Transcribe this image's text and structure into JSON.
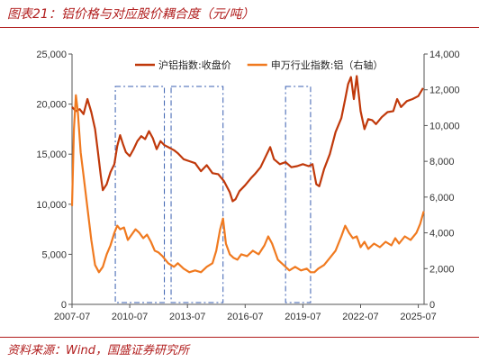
{
  "figure": {
    "title": "图表21：铝价格与对应股价耦合度（元/吨）",
    "source": "资料来源：Wind，国盛证券研究所"
  },
  "chart_data": {
    "type": "line",
    "x_ticks": [
      "2007-07",
      "2010-07",
      "2013-07",
      "2016-07",
      "2019-07",
      "2022-07",
      "2025-07"
    ],
    "x_range": [
      2007.5,
      2025.8
    ],
    "ylim_left": [
      0,
      25000
    ],
    "ylim_right": [
      0,
      14000
    ],
    "yticks_left": [
      "0",
      "5,000",
      "10,000",
      "15,000",
      "20,000",
      "25,000"
    ],
    "yticks_right": [
      "0",
      "2,000",
      "4,000",
      "6,000",
      "8,000",
      "10,000",
      "12,000",
      "14,000"
    ],
    "legend_position": "top-center",
    "highlight_periods": [
      [
        2009.75,
        2012.3
      ],
      [
        2012.65,
        2015.35
      ],
      [
        2018.6,
        2019.9
      ]
    ],
    "series": [
      {
        "name": "沪铝指数:收盘价",
        "axis": "left",
        "color": "#c0390b",
        "points": [
          [
            2007.5,
            19700
          ],
          [
            2007.7,
            19300
          ],
          [
            2007.9,
            19500
          ],
          [
            2008.1,
            19000
          ],
          [
            2008.3,
            20500
          ],
          [
            2008.5,
            19200
          ],
          [
            2008.7,
            17500
          ],
          [
            2008.85,
            15200
          ],
          [
            2009.0,
            12800
          ],
          [
            2009.1,
            11400
          ],
          [
            2009.3,
            12000
          ],
          [
            2009.5,
            13200
          ],
          [
            2009.7,
            14000
          ],
          [
            2009.85,
            15800
          ],
          [
            2010.0,
            16900
          ],
          [
            2010.15,
            16000
          ],
          [
            2010.3,
            15200
          ],
          [
            2010.5,
            14800
          ],
          [
            2010.7,
            15500
          ],
          [
            2010.9,
            16300
          ],
          [
            2011.1,
            16800
          ],
          [
            2011.3,
            16500
          ],
          [
            2011.5,
            17300
          ],
          [
            2011.7,
            16600
          ],
          [
            2011.9,
            15500
          ],
          [
            2012.1,
            16300
          ],
          [
            2012.3,
            15900
          ],
          [
            2012.5,
            15700
          ],
          [
            2012.8,
            15400
          ],
          [
            2013.0,
            15100
          ],
          [
            2013.3,
            14500
          ],
          [
            2013.6,
            14300
          ],
          [
            2013.9,
            14100
          ],
          [
            2014.2,
            13300
          ],
          [
            2014.5,
            13900
          ],
          [
            2014.8,
            13100
          ],
          [
            2015.1,
            13000
          ],
          [
            2015.4,
            12300
          ],
          [
            2015.7,
            11200
          ],
          [
            2015.85,
            10300
          ],
          [
            2016.0,
            10500
          ],
          [
            2016.2,
            11300
          ],
          [
            2016.5,
            11900
          ],
          [
            2016.8,
            12600
          ],
          [
            2017.0,
            13000
          ],
          [
            2017.3,
            13700
          ],
          [
            2017.6,
            14900
          ],
          [
            2017.8,
            15700
          ],
          [
            2018.0,
            14500
          ],
          [
            2018.3,
            14000
          ],
          [
            2018.6,
            14200
          ],
          [
            2018.9,
            13700
          ],
          [
            2019.2,
            13800
          ],
          [
            2019.5,
            14000
          ],
          [
            2019.8,
            13800
          ],
          [
            2020.0,
            14000
          ],
          [
            2020.2,
            12000
          ],
          [
            2020.35,
            11800
          ],
          [
            2020.6,
            13500
          ],
          [
            2020.9,
            15000
          ],
          [
            2021.2,
            17200
          ],
          [
            2021.5,
            18600
          ],
          [
            2021.7,
            20500
          ],
          [
            2021.85,
            22000
          ],
          [
            2022.0,
            22700
          ],
          [
            2022.15,
            20500
          ],
          [
            2022.3,
            22800
          ],
          [
            2022.5,
            19300
          ],
          [
            2022.7,
            17500
          ],
          [
            2022.9,
            18500
          ],
          [
            2023.1,
            18400
          ],
          [
            2023.3,
            18000
          ],
          [
            2023.6,
            18700
          ],
          [
            2023.9,
            19200
          ],
          [
            2024.2,
            19300
          ],
          [
            2024.4,
            20500
          ],
          [
            2024.6,
            19700
          ],
          [
            2024.9,
            20300
          ],
          [
            2025.2,
            20500
          ],
          [
            2025.5,
            20800
          ],
          [
            2025.75,
            21600
          ]
        ]
      },
      {
        "name": "申万行业指数:铝（右轴）",
        "axis": "right",
        "color": "#f07a20",
        "points": [
          [
            2007.5,
            5500
          ],
          [
            2007.6,
            9800
          ],
          [
            2007.7,
            11700
          ],
          [
            2007.8,
            10800
          ],
          [
            2007.95,
            8500
          ],
          [
            2008.1,
            7200
          ],
          [
            2008.3,
            5400
          ],
          [
            2008.5,
            3600
          ],
          [
            2008.7,
            2200
          ],
          [
            2008.9,
            1800
          ],
          [
            2009.1,
            2100
          ],
          [
            2009.3,
            2800
          ],
          [
            2009.5,
            3300
          ],
          [
            2009.7,
            4000
          ],
          [
            2009.85,
            4400
          ],
          [
            2010.0,
            4200
          ],
          [
            2010.2,
            4300
          ],
          [
            2010.4,
            3600
          ],
          [
            2010.6,
            3900
          ],
          [
            2010.8,
            4200
          ],
          [
            2011.0,
            4000
          ],
          [
            2011.2,
            3700
          ],
          [
            2011.4,
            3900
          ],
          [
            2011.6,
            3500
          ],
          [
            2011.8,
            3000
          ],
          [
            2012.0,
            2900
          ],
          [
            2012.2,
            2700
          ],
          [
            2012.5,
            2300
          ],
          [
            2012.8,
            2100
          ],
          [
            2013.0,
            2300
          ],
          [
            2013.3,
            2000
          ],
          [
            2013.6,
            1800
          ],
          [
            2013.9,
            1900
          ],
          [
            2014.2,
            1800
          ],
          [
            2014.5,
            2100
          ],
          [
            2014.8,
            2300
          ],
          [
            2015.0,
            3000
          ],
          [
            2015.2,
            4200
          ],
          [
            2015.35,
            4800
          ],
          [
            2015.5,
            3400
          ],
          [
            2015.7,
            2800
          ],
          [
            2015.9,
            2600
          ],
          [
            2016.1,
            2500
          ],
          [
            2016.3,
            2800
          ],
          [
            2016.6,
            2700
          ],
          [
            2016.9,
            3000
          ],
          [
            2017.2,
            2800
          ],
          [
            2017.5,
            3300
          ],
          [
            2017.7,
            3800
          ],
          [
            2017.9,
            3400
          ],
          [
            2018.2,
            2500
          ],
          [
            2018.5,
            2200
          ],
          [
            2018.8,
            1900
          ],
          [
            2019.1,
            2100
          ],
          [
            2019.4,
            1900
          ],
          [
            2019.7,
            2000
          ],
          [
            2019.9,
            1800
          ],
          [
            2020.1,
            1800
          ],
          [
            2020.3,
            2000
          ],
          [
            2020.6,
            2200
          ],
          [
            2020.9,
            2600
          ],
          [
            2021.2,
            3000
          ],
          [
            2021.5,
            3800
          ],
          [
            2021.7,
            4400
          ],
          [
            2021.9,
            4000
          ],
          [
            2022.1,
            3700
          ],
          [
            2022.3,
            3800
          ],
          [
            2022.5,
            3200
          ],
          [
            2022.7,
            3500
          ],
          [
            2022.9,
            3100
          ],
          [
            2023.2,
            3400
          ],
          [
            2023.5,
            3200
          ],
          [
            2023.8,
            3500
          ],
          [
            2024.1,
            3300
          ],
          [
            2024.3,
            3700
          ],
          [
            2024.5,
            3400
          ],
          [
            2024.8,
            3800
          ],
          [
            2025.1,
            3600
          ],
          [
            2025.4,
            4000
          ],
          [
            2025.6,
            4500
          ],
          [
            2025.78,
            5200
          ]
        ]
      }
    ]
  }
}
